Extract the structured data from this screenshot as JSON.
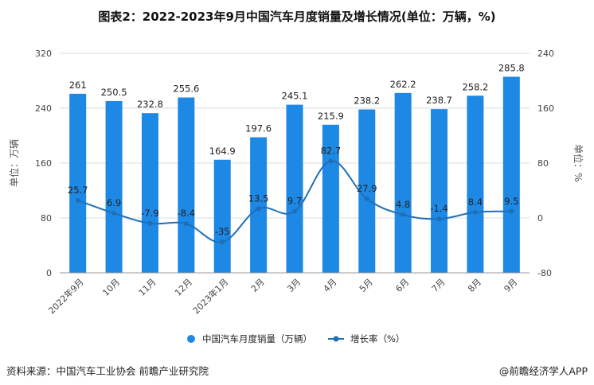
{
  "title": "图表2：2022-2023年9月中国汽车月度销量及增长情况(单位：万辆，%)",
  "footer": {
    "source": "资料来源：中国汽车工业协会 前瞻产业研究院",
    "credit": "@前瞻经济学人APP"
  },
  "colors": {
    "bar": "#1e88e5",
    "line": "#1e6fb8",
    "grid": "#dddddd"
  },
  "chart_data": {
    "type": "bar",
    "categories": [
      "2022年9月",
      "10月",
      "11月",
      "12月",
      "2023年1月",
      "2月",
      "3月",
      "4月",
      "5月",
      "6月",
      "7月",
      "8月",
      "9月"
    ],
    "series": [
      {
        "name": "中国汽车月度销量（万辆）",
        "type": "bar",
        "axis": "left",
        "values": [
          261,
          250.5,
          232.8,
          255.6,
          164.9,
          197.6,
          245.1,
          215.9,
          238.2,
          262.2,
          238.7,
          258.2,
          285.8
        ],
        "labels": [
          "261",
          "250.5",
          "232.8",
          "255.6",
          "164.9",
          "197.6",
          "245.1",
          "215.9",
          "238.2",
          "262.2",
          "238.7",
          "258.2",
          "285.8"
        ]
      },
      {
        "name": "增长率（%）",
        "type": "line",
        "axis": "right",
        "values": [
          25.7,
          6.9,
          -7.9,
          -8.4,
          -35,
          13.5,
          9.7,
          82.7,
          27.9,
          4.8,
          -1.4,
          8.4,
          9.5
        ],
        "labels": [
          "25.7",
          "6.9",
          "-7.9",
          "-8.4",
          "-35",
          "13.5",
          "9.7",
          "82.7",
          "27.9",
          "4.8",
          "-1.4",
          "8.4",
          "9.5"
        ]
      }
    ],
    "ylabel_left": "单位：万辆",
    "ylabel_right": "单位：%",
    "ylim_left": [
      0,
      320
    ],
    "ylim_right": [
      -80,
      240
    ],
    "yticks_left": [
      0,
      80,
      160,
      240,
      320
    ],
    "yticks_right": [
      -80,
      0,
      80,
      160,
      240
    ],
    "ytick_labels_left": [
      "0",
      "80",
      "160",
      "240",
      "320"
    ],
    "ytick_labels_right": [
      "-80",
      "0",
      "80",
      "160",
      "240"
    ],
    "grid": "horizontal",
    "legend_position": "bottom"
  }
}
